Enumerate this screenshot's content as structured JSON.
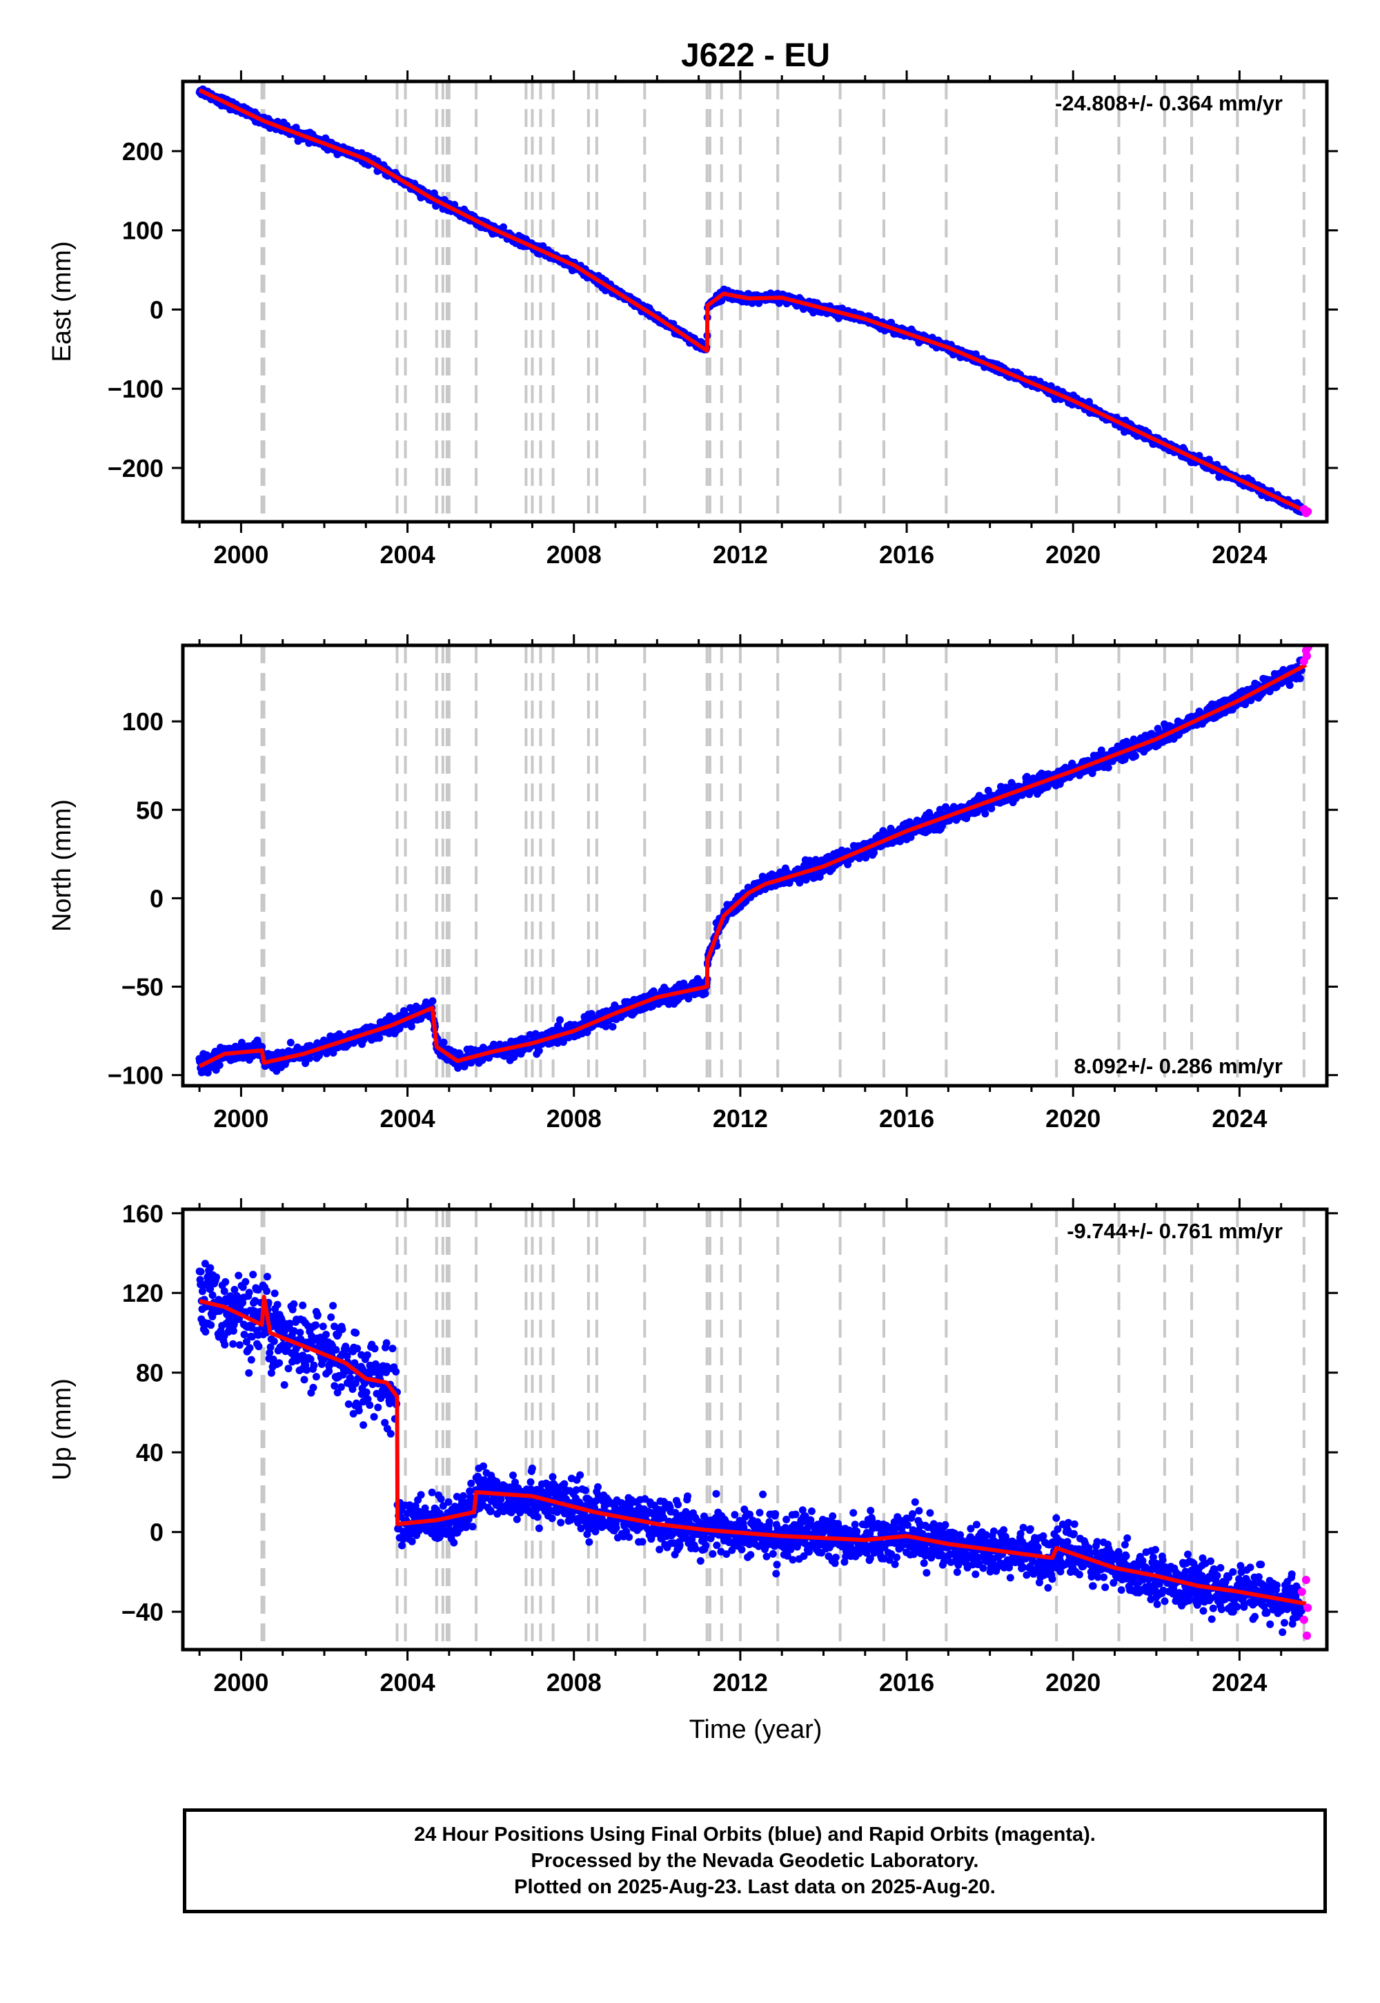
{
  "title": "J622 - EU",
  "x_axis": {
    "label": "Time (year)",
    "ticks": [
      2000,
      2004,
      2008,
      2012,
      2016,
      2020,
      2024
    ],
    "range": [
      1998.6,
      2026.1
    ]
  },
  "vertical_event_lines": [
    2000.5,
    2000.55,
    2003.75,
    2003.95,
    2004.7,
    2004.85,
    2004.95,
    2005.0,
    2005.65,
    2006.85,
    2007.0,
    2007.2,
    2007.5,
    2008.35,
    2008.55,
    2009.7,
    2011.2,
    2011.27,
    2011.55,
    2012.0,
    2012.9,
    2014.4,
    2015.45,
    2016.95,
    2019.6,
    2021.1,
    2022.2,
    2022.85,
    2023.95,
    2025.55
  ],
  "chart_data": [
    {
      "type": "scatter",
      "ylabel": "East (mm)",
      "ylim": [
        -268,
        288
      ],
      "yticks": [
        200,
        100,
        0,
        -100,
        -200
      ],
      "rate_text": "-24.808+/- 0.364 mm/yr",
      "rate_position": "top-right",
      "noise": 3.5,
      "model": [
        [
          1999.0,
          277
        ],
        [
          2000.55,
          238
        ],
        [
          2003.0,
          190
        ],
        [
          2004.6,
          140
        ],
        [
          2006.0,
          103
        ],
        [
          2008.0,
          56
        ],
        [
          2010.0,
          -10
        ],
        [
          2011.2,
          -52
        ],
        [
          2011.21,
          5
        ],
        [
          2011.6,
          20
        ],
        [
          2012.2,
          14
        ],
        [
          2013.0,
          15
        ],
        [
          2015.0,
          -12
        ],
        [
          2017.0,
          -48
        ],
        [
          2020.0,
          -115
        ],
        [
          2022.0,
          -165
        ],
        [
          2024.0,
          -215
        ],
        [
          2025.6,
          -255
        ]
      ],
      "rapid_points": [
        [
          2025.55,
          -252
        ],
        [
          2025.6,
          -257
        ],
        [
          2025.64,
          -255
        ]
      ],
      "grid": false
    },
    {
      "type": "scatter",
      "ylabel": "North (mm)",
      "ylim": [
        -106,
        143
      ],
      "yticks": [
        100,
        50,
        0,
        -50,
        -100
      ],
      "rate_text": "8.092+/- 0.286 mm/yr",
      "rate_position": "bottom-right",
      "noise": 3.0,
      "model": [
        [
          1999.0,
          -95
        ],
        [
          1999.6,
          -88
        ],
        [
          2000.5,
          -86
        ],
        [
          2000.55,
          -93
        ],
        [
          2001.5,
          -88
        ],
        [
          2003.6,
          -72
        ],
        [
          2004.6,
          -62
        ],
        [
          2004.7,
          -84
        ],
        [
          2005.2,
          -92
        ],
        [
          2006.0,
          -87
        ],
        [
          2007.0,
          -82
        ],
        [
          2008.0,
          -75
        ],
        [
          2009.0,
          -65
        ],
        [
          2010.0,
          -56
        ],
        [
          2011.2,
          -50
        ],
        [
          2011.21,
          -35
        ],
        [
          2011.6,
          -10
        ],
        [
          2012.2,
          3
        ],
        [
          2012.6,
          8
        ],
        [
          2014.0,
          18
        ],
        [
          2016.0,
          38
        ],
        [
          2018.0,
          55
        ],
        [
          2020.0,
          72
        ],
        [
          2022.0,
          90
        ],
        [
          2024.0,
          112
        ],
        [
          2025.6,
          132
        ]
      ],
      "rapid_points": [
        [
          2025.55,
          134
        ],
        [
          2025.6,
          140
        ],
        [
          2025.62,
          137
        ],
        [
          2025.65,
          142
        ]
      ],
      "grid": false
    },
    {
      "type": "scatter",
      "ylabel": "Up (mm)",
      "ylim": [
        -59,
        162
      ],
      "yticks": [
        160,
        120,
        80,
        40,
        0,
        -40
      ],
      "rate_text": "-9.744+/- 0.761 mm/yr",
      "rate_position": "top-right",
      "noise": 11.0,
      "model": [
        [
          1999.0,
          116
        ],
        [
          1999.6,
          113
        ],
        [
          2000.5,
          104
        ],
        [
          2000.55,
          118
        ],
        [
          2000.7,
          100
        ],
        [
          2002.5,
          85
        ],
        [
          2003.0,
          77
        ],
        [
          2003.5,
          75
        ],
        [
          2003.75,
          68
        ],
        [
          2003.76,
          4
        ],
        [
          2004.7,
          6
        ],
        [
          2005.6,
          10
        ],
        [
          2005.65,
          20
        ],
        [
          2007.0,
          18
        ],
        [
          2008.5,
          10
        ],
        [
          2010.0,
          4
        ],
        [
          2011.2,
          1
        ],
        [
          2013.0,
          -2
        ],
        [
          2015.0,
          -4
        ],
        [
          2016.0,
          -2
        ],
        [
          2017.0,
          -6
        ],
        [
          2019.5,
          -13
        ],
        [
          2019.6,
          -8
        ],
        [
          2021.0,
          -18
        ],
        [
          2022.0,
          -22
        ],
        [
          2023.0,
          -27
        ],
        [
          2024.0,
          -30
        ],
        [
          2025.6,
          -36
        ]
      ],
      "rapid_points": [
        [
          2025.5,
          -30
        ],
        [
          2025.55,
          -44
        ],
        [
          2025.6,
          -24
        ],
        [
          2025.62,
          -52
        ],
        [
          2025.64,
          -38
        ]
      ],
      "grid": false
    }
  ],
  "legend": {
    "line1": "24 Hour Positions Using Final Orbits (blue) and Rapid Orbits (magenta).",
    "line2": "Processed by the Nevada Geodetic Laboratory.",
    "line3": "Plotted on 2025-Aug-23. Last data on 2025-Aug-20."
  },
  "colors": {
    "data": "#0000ff",
    "model": "#ff0000",
    "rapid": "#ff00ff",
    "event_line": "#c8c8c8"
  }
}
